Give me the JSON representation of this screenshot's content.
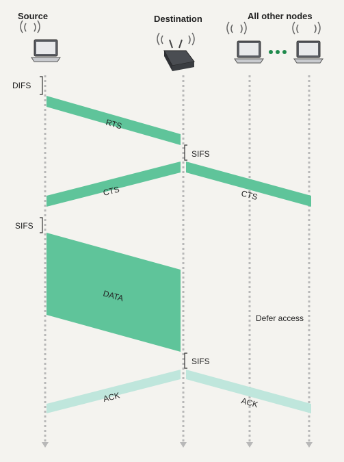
{
  "nodes": {
    "source": "Source",
    "destination": "Destination",
    "others": "All other nodes"
  },
  "timings": {
    "difs": "DIFS",
    "sifs_1": "SIFS",
    "sifs_2": "SIFS",
    "sifs_3": "SIFS"
  },
  "frames": {
    "rts": "RTS",
    "cts_dest": "CTS",
    "cts_others": "CTS",
    "data": "DATA",
    "ack_dest": "ACK",
    "ack_others": "ACK"
  },
  "defer": "Defer access",
  "colors": {
    "frame_green": "#5fc49a",
    "frame_light": "#bfe6dc",
    "dotted_line": "#b8b8b8"
  }
}
